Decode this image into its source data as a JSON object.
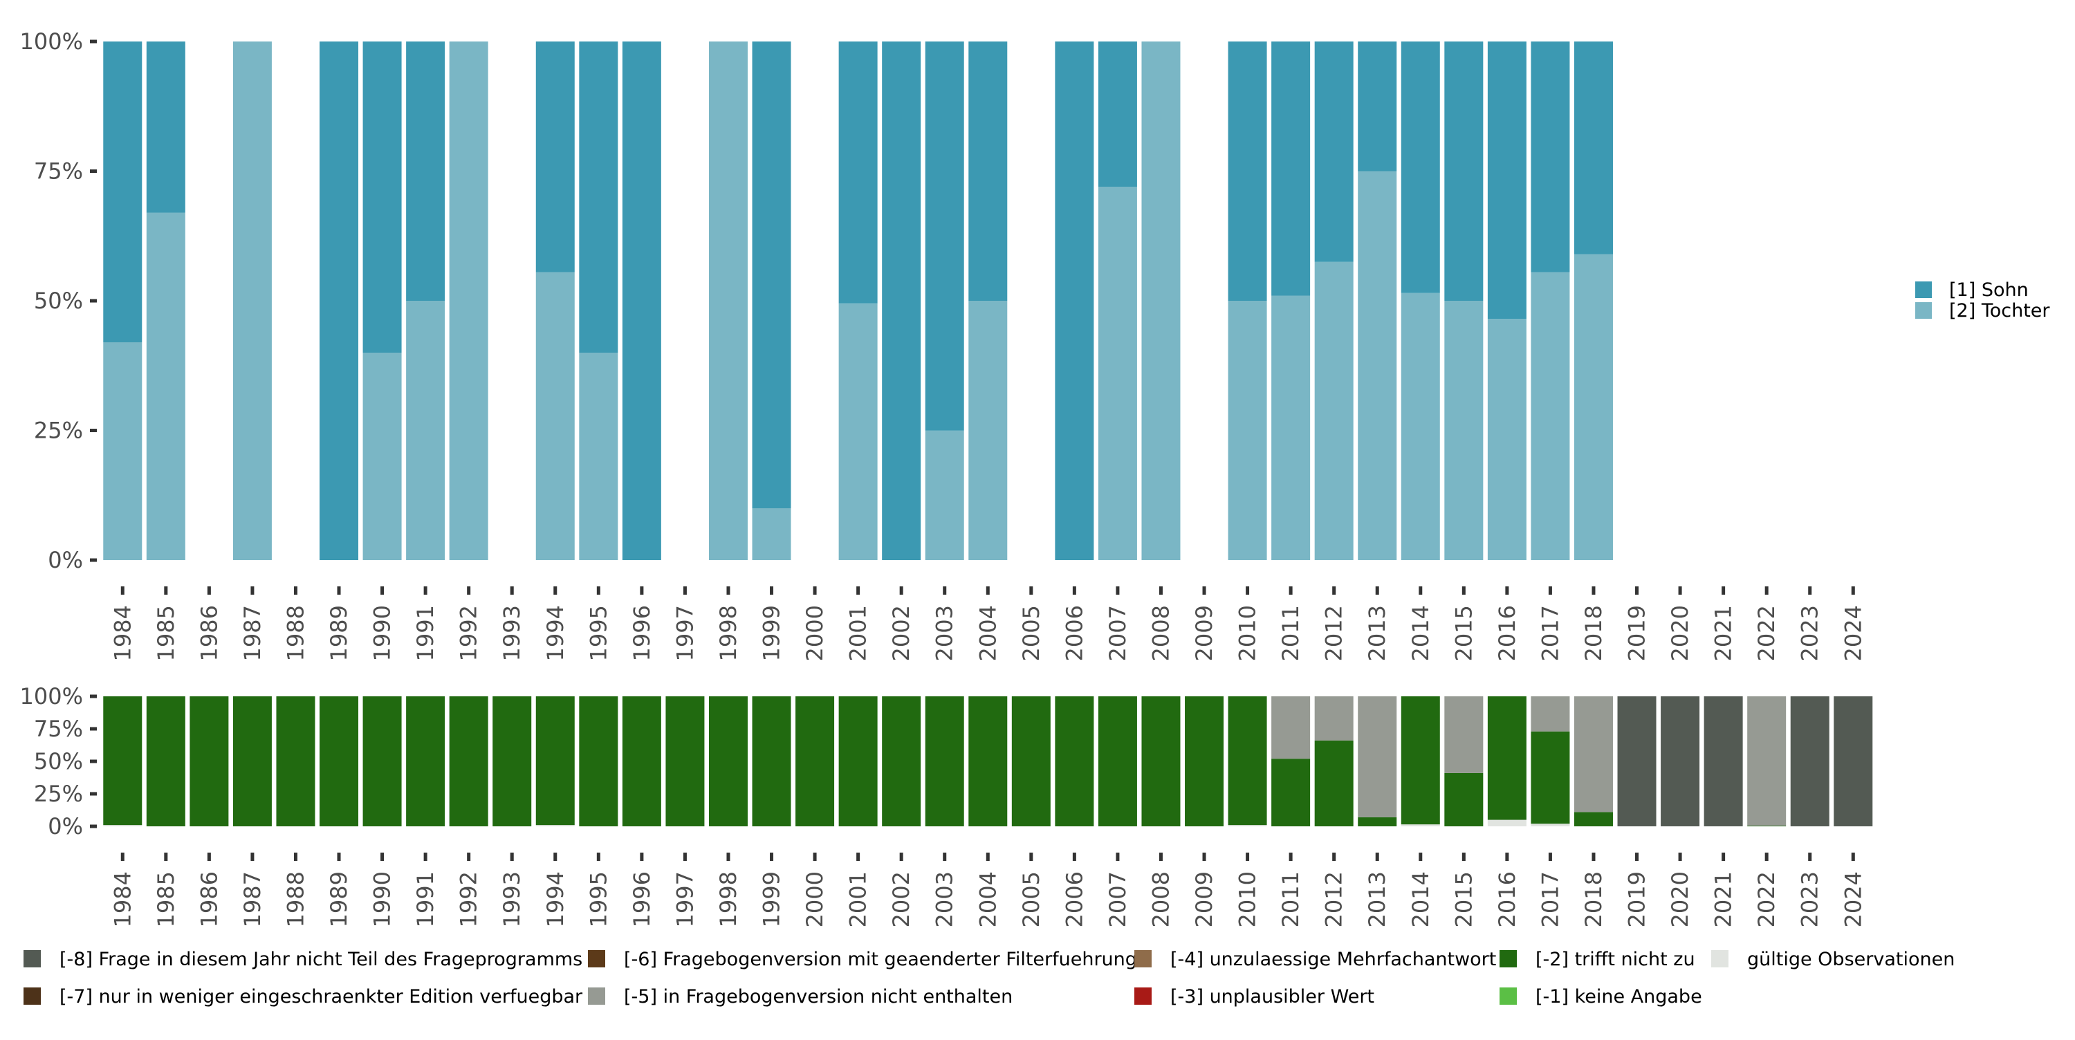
{
  "chart_data": [
    {
      "type": "bar",
      "stacked": true,
      "normalized": true,
      "title": "",
      "xlabel": "",
      "ylabel": "",
      "ylim": [
        0,
        100
      ],
      "yticks": [
        "0%",
        "25%",
        "50%",
        "75%",
        "100%"
      ],
      "ytick_values": [
        0,
        25,
        50,
        75,
        100
      ],
      "categories": [
        "1984",
        "1985",
        "1986",
        "1987",
        "1988",
        "1989",
        "1990",
        "1991",
        "1992",
        "1993",
        "1994",
        "1995",
        "1996",
        "1997",
        "1998",
        "1999",
        "2000",
        "2001",
        "2002",
        "2003",
        "2004",
        "2005",
        "2006",
        "2007",
        "2008",
        "2009",
        "2010",
        "2011",
        "2012",
        "2013",
        "2014",
        "2015",
        "2016",
        "2017",
        "2018",
        "2019",
        "2020",
        "2021",
        "2022",
        "2023",
        "2024"
      ],
      "series": [
        {
          "name": "[2] Tochter",
          "color": "#7ab6c5",
          "values": [
            42,
            67,
            null,
            100,
            null,
            0,
            40,
            50,
            100,
            null,
            55.5,
            40,
            0,
            null,
            100,
            10,
            null,
            49.5,
            0,
            25,
            50,
            null,
            0,
            72,
            100,
            null,
            50,
            51,
            57.5,
            75,
            51.5,
            50,
            46.5,
            55.5,
            59,
            null,
            null,
            null,
            null,
            null,
            null
          ]
        },
        {
          "name": "[1] Sohn",
          "color": "#3c99b2",
          "values": [
            58,
            33,
            null,
            0,
            null,
            100,
            60,
            50,
            0,
            null,
            44.5,
            60,
            100,
            null,
            0,
            90,
            null,
            50.5,
            100,
            75,
            50,
            null,
            100,
            28,
            0,
            null,
            50,
            49,
            42.5,
            25,
            48.5,
            50,
            53.5,
            44.5,
            41,
            null,
            null,
            null,
            null,
            null,
            null
          ]
        }
      ],
      "legend": {
        "placement": "right",
        "entries": [
          "[1] Sohn",
          "[2] Tochter"
        ]
      }
    },
    {
      "type": "bar",
      "stacked": true,
      "normalized": true,
      "title": "",
      "xlabel": "",
      "ylabel": "",
      "ylim": [
        0,
        100
      ],
      "yticks": [
        "0%",
        "25%",
        "50%",
        "75%",
        "100%"
      ],
      "ytick_values": [
        0,
        25,
        50,
        75,
        100
      ],
      "categories": [
        "1984",
        "1985",
        "1986",
        "1987",
        "1988",
        "1989",
        "1990",
        "1991",
        "1992",
        "1993",
        "1994",
        "1995",
        "1996",
        "1997",
        "1998",
        "1999",
        "2000",
        "2001",
        "2002",
        "2003",
        "2004",
        "2005",
        "2006",
        "2007",
        "2008",
        "2009",
        "2010",
        "2011",
        "2012",
        "2013",
        "2014",
        "2015",
        "2016",
        "2017",
        "2018",
        "2019",
        "2020",
        "2021",
        "2022",
        "2023",
        "2024"
      ],
      "series": [
        {
          "name": "gültige Observationen",
          "color": "#e1e4e0",
          "values": [
            1,
            0,
            0,
            0,
            0,
            0,
            0,
            0,
            0,
            0,
            1,
            0,
            0,
            0,
            0,
            0,
            0,
            0,
            0,
            0,
            0,
            0,
            0,
            0,
            0,
            0,
            1,
            0,
            0,
            0,
            1.5,
            0,
            5,
            2,
            0,
            0,
            0,
            0,
            0,
            0,
            0
          ]
        },
        {
          "name": "[-2] trifft nicht zu",
          "color": "#216a10",
          "values": [
            99,
            100,
            100,
            100,
            100,
            100,
            100,
            100,
            100,
            100,
            99,
            100,
            100,
            100,
            100,
            100,
            100,
            100,
            100,
            100,
            100,
            100,
            100,
            100,
            100,
            100,
            99,
            52,
            66,
            7,
            98.5,
            41,
            95,
            71,
            11,
            0,
            0,
            0,
            0.5,
            0,
            0
          ]
        },
        {
          "name": "[-5] in Fragebogenversion nicht enthalten",
          "color": "#969a93",
          "values": [
            0,
            0,
            0,
            0,
            0,
            0,
            0,
            0,
            0,
            0,
            0,
            0,
            0,
            0,
            0,
            0,
            0,
            0,
            0,
            0,
            0,
            0,
            0,
            0,
            0,
            0,
            0,
            48,
            34,
            93,
            0,
            59,
            0,
            27,
            89,
            0,
            0,
            0,
            99.5,
            0,
            0
          ]
        },
        {
          "name": "[-8] Frage in diesem Jahr nicht Teil des Frageprogramms",
          "color": "#535a53",
          "values": [
            0,
            0,
            0,
            0,
            0,
            0,
            0,
            0,
            0,
            0,
            0,
            0,
            0,
            0,
            0,
            0,
            0,
            0,
            0,
            0,
            0,
            0,
            0,
            0,
            0,
            0,
            0,
            0,
            0,
            0,
            0,
            0,
            0,
            0,
            0,
            100,
            100,
            100,
            0,
            100,
            100
          ]
        }
      ],
      "legend": {
        "placement": "bottom",
        "entries": [
          {
            "label": "[-8] Frage in diesem Jahr nicht Teil des Frageprogramms",
            "color": "#535a53"
          },
          {
            "label": "[-7] nur in weniger eingeschraenkter Edition verfuegbar",
            "color": "#4d3219"
          },
          {
            "label": "[-6] Fragebogenversion mit geaenderter Filterfuehrung",
            "color": "#5c3a19"
          },
          {
            "label": "[-5] in Fragebogenversion nicht enthalten",
            "color": "#969a93"
          },
          {
            "label": "[-4] unzulaessige Mehrfachantwort",
            "color": "#8f6c4a"
          },
          {
            "label": "[-3] unplausibler Wert",
            "color": "#a81a16"
          },
          {
            "label": "[-2] trifft nicht zu",
            "color": "#216a10"
          },
          {
            "label": "[-1] keine Angabe",
            "color": "#5bbf45"
          },
          {
            "label": "gültige Observationen",
            "color": "#e1e4e0"
          }
        ]
      }
    }
  ]
}
